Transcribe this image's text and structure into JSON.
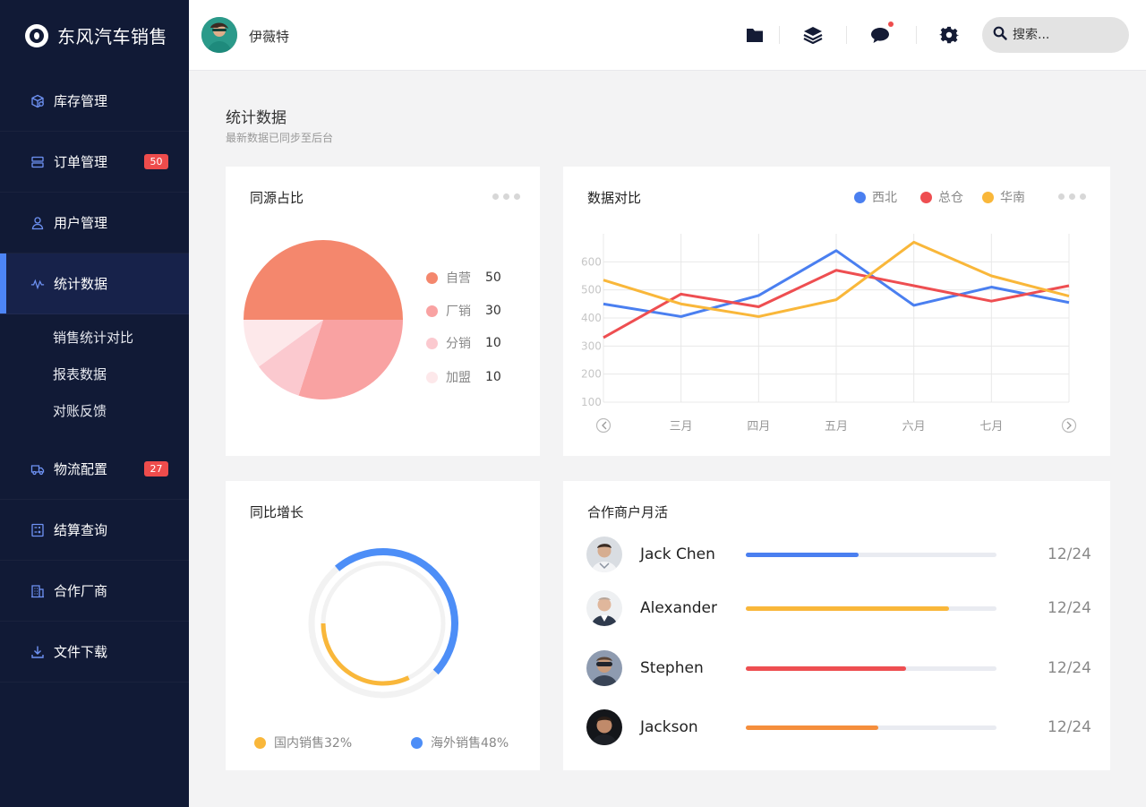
{
  "brand": {
    "name": "东风汽车销售"
  },
  "sidebar": {
    "items": [
      {
        "label": "库存管理",
        "icon": "box-icon"
      },
      {
        "label": "订单管理",
        "icon": "server-icon",
        "badge": "50"
      },
      {
        "label": "用户管理",
        "icon": "user-icon"
      },
      {
        "label": "统计数据",
        "icon": "pulse-icon",
        "active": true
      },
      {
        "label": "物流配置",
        "icon": "truck-icon",
        "badge": "27"
      },
      {
        "label": "结算查询",
        "icon": "calculator-icon"
      },
      {
        "label": "合作厂商",
        "icon": "building-icon"
      },
      {
        "label": "文件下载",
        "icon": "download-icon"
      }
    ],
    "subitems": [
      "销售统计对比",
      "报表数据",
      "对账反馈"
    ]
  },
  "header": {
    "user_name": "伊薇特",
    "search_placeholder": "搜索..."
  },
  "page": {
    "title": "统计数据",
    "subtitle": "最新数据已同步至后台"
  },
  "pie_card": {
    "title": "同源占比",
    "legend": [
      {
        "label": "自营",
        "value": "50",
        "color": "#f4876d"
      },
      {
        "label": "厂销",
        "value": "30",
        "color": "#f9a2a2"
      },
      {
        "label": "分销",
        "value": "10",
        "color": "#fbc9cf"
      },
      {
        "label": "加盟",
        "value": "10",
        "color": "#fde8ea"
      }
    ]
  },
  "line_card": {
    "title": "数据对比",
    "legend": [
      {
        "label": "西北",
        "color": "#4a7ff0"
      },
      {
        "label": "总仓",
        "color": "#ee4e51"
      },
      {
        "label": "华南",
        "color": "#f9b73a"
      }
    ]
  },
  "donut_card": {
    "title": "同比增长",
    "legend": [
      {
        "label": "国内销售32%",
        "color": "#f9b73a"
      },
      {
        "label": "海外销售48%",
        "color": "#4d8ef7"
      }
    ]
  },
  "merchants_card": {
    "title": "合作商户月活",
    "rows": [
      {
        "name": "Jack Chen",
        "date": "12/24",
        "progress": 0.45,
        "color": "#4a7ff0"
      },
      {
        "name": "Alexander",
        "date": "12/24",
        "progress": 0.81,
        "color": "#f9b73a"
      },
      {
        "name": "Stephen",
        "date": "12/24",
        "progress": 0.64,
        "color": "#ee4e51"
      },
      {
        "name": "Jackson",
        "date": "12/24",
        "progress": 0.53,
        "color": "#f58e3c"
      }
    ]
  },
  "chart_data": [
    {
      "type": "pie",
      "title": "同源占比",
      "categories": [
        "自营",
        "厂销",
        "分销",
        "加盟"
      ],
      "values": [
        50,
        30,
        10,
        10
      ],
      "colors": [
        "#f4876d",
        "#f9a2a2",
        "#fbc9cf",
        "#fde8ea"
      ],
      "legend": "right"
    },
    {
      "type": "line",
      "title": "数据对比",
      "categories": [
        "",
        "三月",
        "四月",
        "五月",
        "六月",
        "七月",
        ""
      ],
      "ylim": [
        100,
        700
      ],
      "yticks": [
        100,
        200,
        300,
        400,
        500,
        600
      ],
      "grid": true,
      "legend": "top-right",
      "series": [
        {
          "name": "西北",
          "color": "#4a7ff0",
          "values": [
            450,
            405,
            480,
            640,
            445,
            510,
            455
          ]
        },
        {
          "name": "总仓",
          "color": "#ee4e51",
          "values": [
            330,
            485,
            440,
            570,
            515,
            460,
            515
          ]
        },
        {
          "name": "华南",
          "color": "#f9b73a",
          "values": [
            535,
            450,
            405,
            465,
            670,
            550,
            478
          ]
        }
      ]
    },
    {
      "type": "pie",
      "title": "同比增长",
      "categories": [
        "国内销售",
        "海外销售"
      ],
      "values": [
        32,
        48
      ],
      "colors": [
        "#f9b73a",
        "#4d8ef7"
      ],
      "legend": "bottom"
    }
  ]
}
